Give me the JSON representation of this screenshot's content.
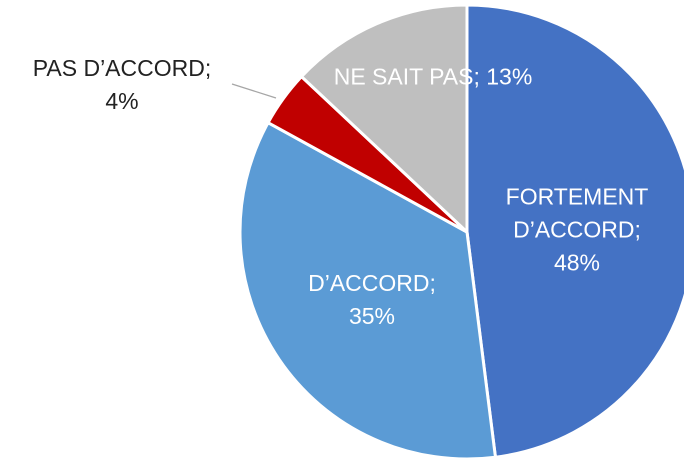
{
  "chart_data": {
    "type": "pie",
    "categories": [
      "FORTEMENT D’ACCORD",
      "D’ACCORD",
      "PAS D’ACCORD",
      "NE SAIT PAS"
    ],
    "values": [
      48,
      35,
      4,
      13
    ],
    "value_labels": [
      "48%",
      "35%",
      "4%",
      "13%"
    ],
    "label_separator": ";",
    "colors": [
      "#4472c4",
      "#5b9bd5",
      "#c00000",
      "#bfbfbf"
    ]
  }
}
